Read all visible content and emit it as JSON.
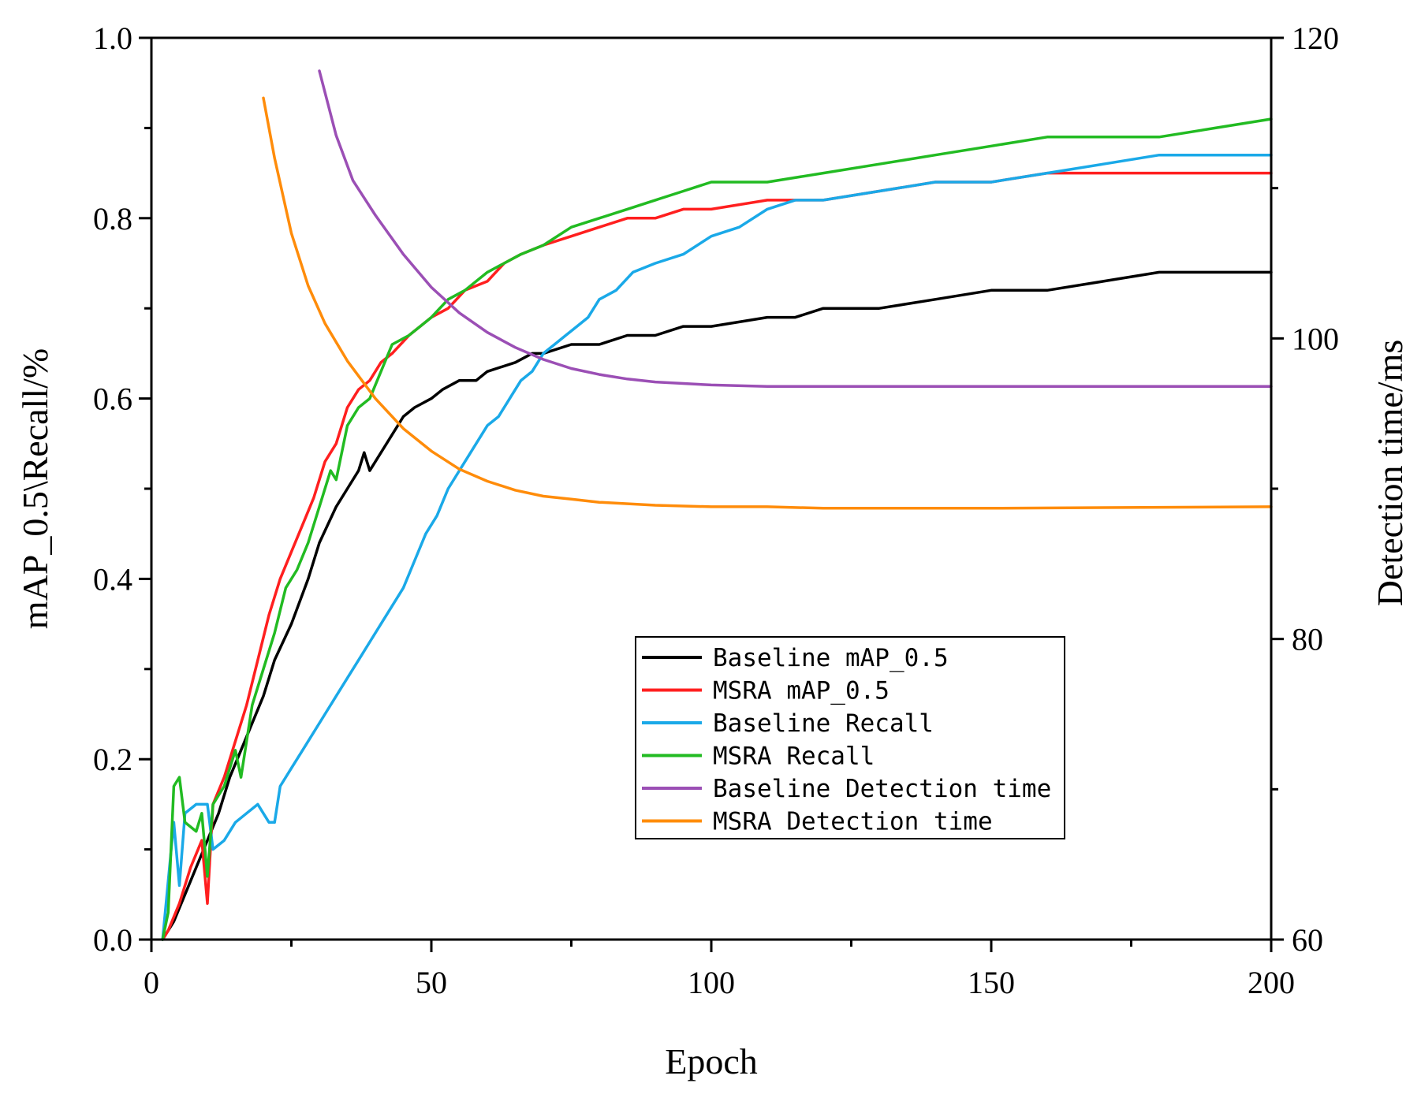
{
  "chart_data": {
    "type": "line",
    "xlabel": "Epoch",
    "ylabel": "mAP_0.5\\Recall/%",
    "y2label": "Detection time/ms",
    "xlim": [
      0,
      200
    ],
    "ylim": [
      0,
      1.0
    ],
    "y2lim": [
      60,
      120
    ],
    "x_ticks": [
      "0",
      "50",
      "100",
      "150",
      "200"
    ],
    "y_ticks": [
      "0.0",
      "0.2",
      "0.4",
      "0.6",
      "0.8",
      "1.0"
    ],
    "y2_ticks": [
      "60",
      "80",
      "100",
      "120"
    ],
    "legend_position": "center-right",
    "series": [
      {
        "name": "Baseline mAP_0.5",
        "axis": "left",
        "color": "#000000",
        "points": [
          [
            2,
            0.0
          ],
          [
            4,
            0.02
          ],
          [
            6,
            0.05
          ],
          [
            8,
            0.08
          ],
          [
            10,
            0.11
          ],
          [
            12,
            0.14
          ],
          [
            14,
            0.18
          ],
          [
            16,
            0.21
          ],
          [
            18,
            0.24
          ],
          [
            20,
            0.27
          ],
          [
            22,
            0.31
          ],
          [
            25,
            0.35
          ],
          [
            28,
            0.4
          ],
          [
            30,
            0.44
          ],
          [
            33,
            0.48
          ],
          [
            35,
            0.5
          ],
          [
            37,
            0.52
          ],
          [
            38,
            0.54
          ],
          [
            39,
            0.52
          ],
          [
            42,
            0.55
          ],
          [
            45,
            0.58
          ],
          [
            47,
            0.59
          ],
          [
            50,
            0.6
          ],
          [
            52,
            0.61
          ],
          [
            55,
            0.62
          ],
          [
            58,
            0.62
          ],
          [
            60,
            0.63
          ],
          [
            65,
            0.64
          ],
          [
            68,
            0.65
          ],
          [
            70,
            0.65
          ],
          [
            75,
            0.66
          ],
          [
            80,
            0.66
          ],
          [
            85,
            0.67
          ],
          [
            90,
            0.67
          ],
          [
            95,
            0.68
          ],
          [
            100,
            0.68
          ],
          [
            110,
            0.69
          ],
          [
            115,
            0.69
          ],
          [
            120,
            0.7
          ],
          [
            130,
            0.7
          ],
          [
            140,
            0.71
          ],
          [
            150,
            0.72
          ],
          [
            160,
            0.72
          ],
          [
            170,
            0.73
          ],
          [
            180,
            0.74
          ],
          [
            190,
            0.74
          ],
          [
            200,
            0.74
          ]
        ]
      },
      {
        "name": "MSRA mAP_0.5",
        "axis": "left",
        "color": "#ff1f1f",
        "points": [
          [
            2,
            0.0
          ],
          [
            3,
            0.01
          ],
          [
            5,
            0.04
          ],
          [
            7,
            0.08
          ],
          [
            9,
            0.11
          ],
          [
            10,
            0.04
          ],
          [
            11,
            0.15
          ],
          [
            13,
            0.18
          ],
          [
            15,
            0.22
          ],
          [
            17,
            0.26
          ],
          [
            19,
            0.31
          ],
          [
            21,
            0.36
          ],
          [
            23,
            0.4
          ],
          [
            25,
            0.43
          ],
          [
            27,
            0.46
          ],
          [
            29,
            0.49
          ],
          [
            31,
            0.53
          ],
          [
            33,
            0.55
          ],
          [
            35,
            0.59
          ],
          [
            37,
            0.61
          ],
          [
            39,
            0.62
          ],
          [
            41,
            0.64
          ],
          [
            43,
            0.65
          ],
          [
            46,
            0.67
          ],
          [
            48,
            0.68
          ],
          [
            50,
            0.69
          ],
          [
            53,
            0.7
          ],
          [
            56,
            0.72
          ],
          [
            60,
            0.73
          ],
          [
            63,
            0.75
          ],
          [
            66,
            0.76
          ],
          [
            70,
            0.77
          ],
          [
            75,
            0.78
          ],
          [
            80,
            0.79
          ],
          [
            85,
            0.8
          ],
          [
            90,
            0.8
          ],
          [
            95,
            0.81
          ],
          [
            100,
            0.81
          ],
          [
            110,
            0.82
          ],
          [
            120,
            0.82
          ],
          [
            130,
            0.83
          ],
          [
            140,
            0.84
          ],
          [
            150,
            0.84
          ],
          [
            160,
            0.85
          ],
          [
            170,
            0.85
          ],
          [
            180,
            0.85
          ],
          [
            190,
            0.85
          ],
          [
            200,
            0.85
          ]
        ]
      },
      {
        "name": "Baseline Recall",
        "axis": "left",
        "color": "#1aa9e8",
        "points": [
          [
            2,
            0.0
          ],
          [
            4,
            0.13
          ],
          [
            5,
            0.06
          ],
          [
            6,
            0.14
          ],
          [
            8,
            0.15
          ],
          [
            10,
            0.15
          ],
          [
            11,
            0.1
          ],
          [
            13,
            0.11
          ],
          [
            15,
            0.13
          ],
          [
            17,
            0.14
          ],
          [
            19,
            0.15
          ],
          [
            21,
            0.13
          ],
          [
            22,
            0.13
          ],
          [
            23,
            0.17
          ],
          [
            25,
            0.19
          ],
          [
            27,
            0.21
          ],
          [
            29,
            0.23
          ],
          [
            31,
            0.25
          ],
          [
            33,
            0.27
          ],
          [
            35,
            0.29
          ],
          [
            37,
            0.31
          ],
          [
            39,
            0.33
          ],
          [
            41,
            0.35
          ],
          [
            43,
            0.37
          ],
          [
            45,
            0.39
          ],
          [
            47,
            0.42
          ],
          [
            49,
            0.45
          ],
          [
            51,
            0.47
          ],
          [
            53,
            0.5
          ],
          [
            56,
            0.53
          ],
          [
            58,
            0.55
          ],
          [
            60,
            0.57
          ],
          [
            62,
            0.58
          ],
          [
            64,
            0.6
          ],
          [
            66,
            0.62
          ],
          [
            68,
            0.63
          ],
          [
            70,
            0.65
          ],
          [
            72,
            0.66
          ],
          [
            74,
            0.67
          ],
          [
            76,
            0.68
          ],
          [
            78,
            0.69
          ],
          [
            80,
            0.71
          ],
          [
            83,
            0.72
          ],
          [
            86,
            0.74
          ],
          [
            90,
            0.75
          ],
          [
            95,
            0.76
          ],
          [
            100,
            0.78
          ],
          [
            105,
            0.79
          ],
          [
            110,
            0.81
          ],
          [
            115,
            0.82
          ],
          [
            120,
            0.82
          ],
          [
            130,
            0.83
          ],
          [
            140,
            0.84
          ],
          [
            150,
            0.84
          ],
          [
            160,
            0.85
          ],
          [
            170,
            0.86
          ],
          [
            180,
            0.87
          ],
          [
            190,
            0.87
          ],
          [
            200,
            0.87
          ]
        ]
      },
      {
        "name": "MSRA Recall",
        "axis": "left",
        "color": "#22bb22",
        "points": [
          [
            2,
            0.0
          ],
          [
            3,
            0.03
          ],
          [
            4,
            0.17
          ],
          [
            5,
            0.18
          ],
          [
            6,
            0.13
          ],
          [
            8,
            0.12
          ],
          [
            9,
            0.14
          ],
          [
            10,
            0.07
          ],
          [
            11,
            0.15
          ],
          [
            13,
            0.17
          ],
          [
            15,
            0.21
          ],
          [
            16,
            0.18
          ],
          [
            18,
            0.26
          ],
          [
            20,
            0.3
          ],
          [
            22,
            0.34
          ],
          [
            24,
            0.39
          ],
          [
            26,
            0.41
          ],
          [
            28,
            0.44
          ],
          [
            30,
            0.48
          ],
          [
            32,
            0.52
          ],
          [
            33,
            0.51
          ],
          [
            35,
            0.57
          ],
          [
            37,
            0.59
          ],
          [
            39,
            0.6
          ],
          [
            41,
            0.63
          ],
          [
            43,
            0.66
          ],
          [
            46,
            0.67
          ],
          [
            48,
            0.68
          ],
          [
            50,
            0.69
          ],
          [
            53,
            0.71
          ],
          [
            56,
            0.72
          ],
          [
            60,
            0.74
          ],
          [
            63,
            0.75
          ],
          [
            66,
            0.76
          ],
          [
            70,
            0.77
          ],
          [
            75,
            0.79
          ],
          [
            80,
            0.8
          ],
          [
            85,
            0.81
          ],
          [
            90,
            0.82
          ],
          [
            95,
            0.83
          ],
          [
            100,
            0.84
          ],
          [
            110,
            0.84
          ],
          [
            120,
            0.85
          ],
          [
            130,
            0.86
          ],
          [
            140,
            0.87
          ],
          [
            150,
            0.88
          ],
          [
            160,
            0.89
          ],
          [
            170,
            0.89
          ],
          [
            180,
            0.89
          ],
          [
            190,
            0.9
          ],
          [
            200,
            0.91
          ]
        ]
      },
      {
        "name": "Baseline Detection time",
        "axis": "right",
        "color": "#9b4fb5",
        "points": [
          [
            30,
            117.8
          ],
          [
            33,
            113.5
          ],
          [
            36,
            110.5
          ],
          [
            40,
            108.2
          ],
          [
            45,
            105.6
          ],
          [
            50,
            103.4
          ],
          [
            55,
            101.7
          ],
          [
            60,
            100.4
          ],
          [
            65,
            99.4
          ],
          [
            70,
            98.6
          ],
          [
            75,
            98.0
          ],
          [
            80,
            97.6
          ],
          [
            85,
            97.3
          ],
          [
            90,
            97.1
          ],
          [
            95,
            97.0
          ],
          [
            100,
            96.9
          ],
          [
            110,
            96.8
          ],
          [
            120,
            96.8
          ],
          [
            150,
            96.8
          ],
          [
            200,
            96.8
          ]
        ]
      },
      {
        "name": "MSRA Detection time",
        "axis": "right",
        "color": "#ff8c0a",
        "points": [
          [
            20,
            116.0
          ],
          [
            22,
            112.0
          ],
          [
            25,
            107.0
          ],
          [
            28,
            103.5
          ],
          [
            31,
            101.0
          ],
          [
            35,
            98.5
          ],
          [
            40,
            96.0
          ],
          [
            45,
            94.0
          ],
          [
            50,
            92.5
          ],
          [
            55,
            91.3
          ],
          [
            60,
            90.5
          ],
          [
            65,
            89.9
          ],
          [
            70,
            89.5
          ],
          [
            75,
            89.3
          ],
          [
            80,
            89.1
          ],
          [
            90,
            88.9
          ],
          [
            100,
            88.8
          ],
          [
            110,
            88.8
          ],
          [
            120,
            88.7
          ],
          [
            150,
            88.7
          ],
          [
            200,
            88.8
          ]
        ]
      }
    ]
  }
}
